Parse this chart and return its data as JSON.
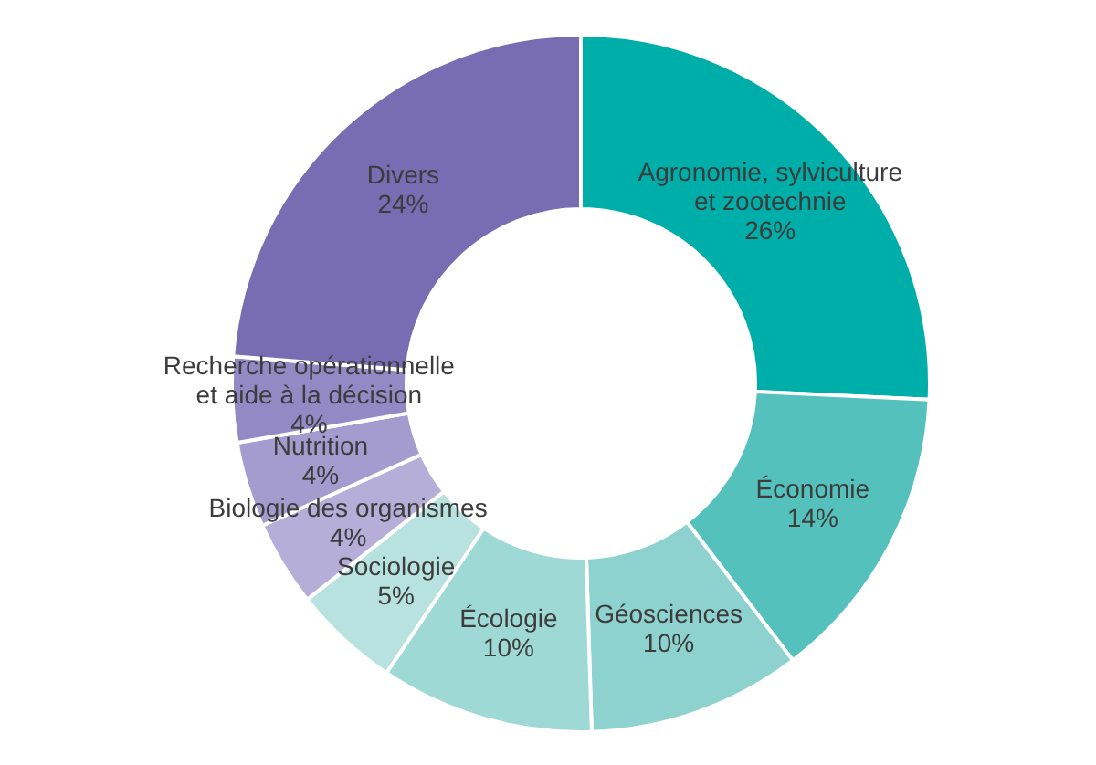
{
  "chart_data": {
    "type": "donut",
    "categories": [
      "Agronomie, sylviculture\net zootechnie",
      "Économie",
      "Géosciences",
      "Écologie",
      "Sociologie",
      "Biologie des organismes",
      "Nutrition",
      "Recherche opérationnelle\net aide à la décision",
      "Divers"
    ],
    "values": [
      26,
      14,
      10,
      10,
      5,
      4,
      4,
      4,
      24
    ],
    "value_labels": [
      "26%",
      "14%",
      "10%",
      "10%",
      "5%",
      "4%",
      "4%",
      "4%",
      "24%"
    ],
    "colors": [
      "#00aea9",
      "#55c1bd",
      "#8dd2cf",
      "#9fd9d6",
      "#b8e2e0",
      "#b5aed8",
      "#a49ccf",
      "#9289c5",
      "#786cb2"
    ],
    "legend": false
  }
}
